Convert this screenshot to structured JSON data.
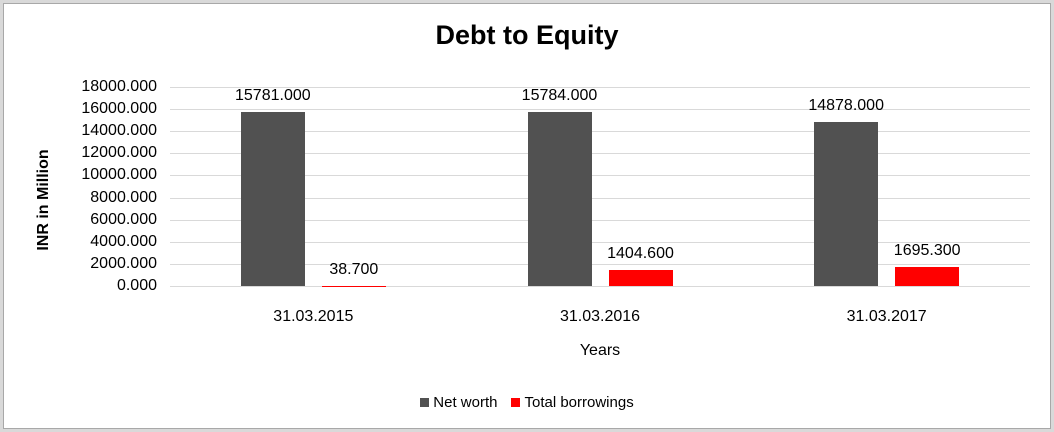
{
  "chart_data": {
    "type": "bar",
    "title": "Debt to Equity",
    "xlabel": "Years",
    "ylabel": "INR in Million",
    "categories": [
      "31.03.2015",
      "31.03.2016",
      "31.03.2017"
    ],
    "series": [
      {
        "name": "Net worth",
        "color": "#515151",
        "values": [
          15781.0,
          15784.0,
          14878.0
        ],
        "labels": [
          "15781.000",
          "15784.000",
          "14878.000"
        ]
      },
      {
        "name": "Total borrowings",
        "color": "#ff0000",
        "values": [
          38.7,
          1404.6,
          1695.3
        ],
        "labels": [
          "38.700",
          "1404.600",
          "1695.300"
        ]
      }
    ],
    "ylim": [
      0,
      18000
    ],
    "ytick_step": 2000,
    "yticks": [
      "18000.000",
      "16000.000",
      "14000.000",
      "12000.000",
      "10000.000",
      "8000.000",
      "6000.000",
      "4000.000",
      "2000.000",
      "0.000"
    ],
    "grid": true,
    "gridline_color": "#d9d9d9",
    "legend_position": "bottom",
    "background": "#ffffff"
  }
}
